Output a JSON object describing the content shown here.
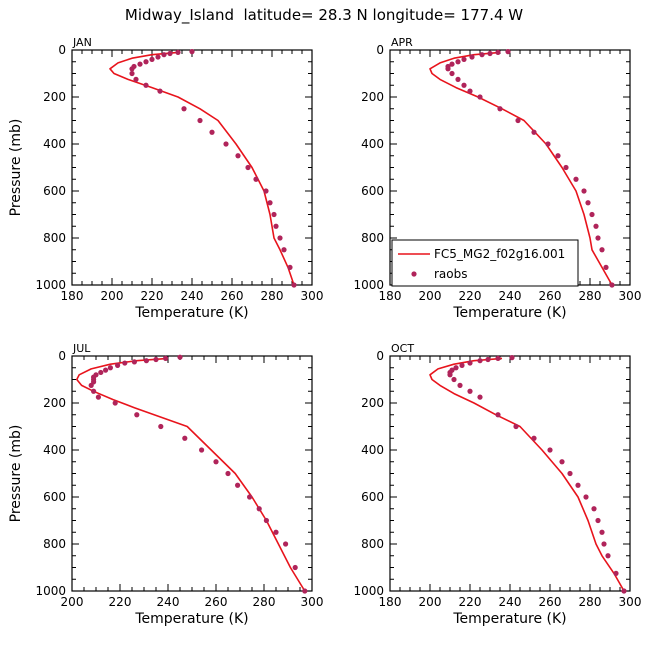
{
  "title": "Midway_Island  latitude= 28.3 N longitude= 177.4 W",
  "colors": {
    "model_line": "#e8141c",
    "raobs_dot": "#b0245a",
    "axis": "#000000"
  },
  "legend": {
    "model_label": "FC5_MG2_f02g16.001",
    "obs_label": "raobs",
    "placement": "inside APR panel, lower-left"
  },
  "chart_data": [
    {
      "type": "line",
      "panel": "JAN",
      "xlabel": "Temperature (K)",
      "ylabel": "Pressure (mb)",
      "xlim": [
        180,
        300
      ],
      "ylim": [
        1000,
        0
      ],
      "xticks": [
        180,
        200,
        220,
        240,
        260,
        280,
        300
      ],
      "yticks": [
        0,
        200,
        400,
        600,
        800,
        1000
      ],
      "series": [
        {
          "name": "FC5_MG2_f02g16.001",
          "style": "line",
          "x": [
            233,
            220,
            210,
            203,
            199,
            201,
            208,
            220,
            233,
            244,
            253,
            262,
            270,
            276,
            279,
            281,
            284,
            288,
            291
          ],
          "y": [
            10,
            20,
            35,
            55,
            80,
            100,
            125,
            160,
            200,
            250,
            300,
            400,
            500,
            600,
            700,
            800,
            850,
            925,
            1000
          ]
        },
        {
          "name": "raobs",
          "style": "points",
          "x": [
            240,
            233,
            229,
            226,
            223,
            220,
            217,
            214,
            211,
            210,
            210,
            212,
            217,
            224,
            236,
            244,
            250,
            257,
            263,
            268,
            272,
            277,
            279,
            281,
            282,
            284,
            286,
            289,
            291
          ],
          "y": [
            7,
            10,
            15,
            20,
            30,
            40,
            50,
            60,
            70,
            80,
            100,
            125,
            150,
            175,
            250,
            300,
            350,
            400,
            450,
            500,
            550,
            600,
            650,
            700,
            750,
            800,
            850,
            925,
            1000
          ]
        }
      ]
    },
    {
      "type": "line",
      "panel": "APR",
      "xlabel": "Temperature (K)",
      "ylabel": "",
      "xlim": [
        180,
        300
      ],
      "ylim": [
        1000,
        0
      ],
      "xticks": [
        180,
        200,
        220,
        240,
        260,
        280,
        300
      ],
      "yticks": [
        0,
        200,
        400,
        600,
        800,
        1000
      ],
      "series": [
        {
          "name": "FC5_MG2_f02g16.001",
          "style": "line",
          "x": [
            235,
            222,
            212,
            205,
            200,
            201,
            205,
            213,
            224,
            236,
            247,
            258,
            266,
            273,
            277,
            280,
            281,
            286,
            291
          ],
          "y": [
            10,
            20,
            35,
            55,
            80,
            100,
            125,
            160,
            200,
            250,
            300,
            400,
            500,
            600,
            700,
            800,
            850,
            925,
            1000
          ]
        },
        {
          "name": "raobs",
          "style": "points",
          "x": [
            239,
            234,
            230,
            226,
            221,
            217,
            214,
            211,
            209,
            209,
            211,
            214,
            217,
            220,
            225,
            235,
            244,
            252,
            259,
            264,
            268,
            273,
            277,
            279,
            281,
            283,
            284,
            286,
            288,
            291
          ],
          "y": [
            7,
            10,
            15,
            20,
            30,
            40,
            50,
            60,
            70,
            80,
            100,
            125,
            150,
            175,
            200,
            250,
            300,
            350,
            400,
            450,
            500,
            550,
            600,
            650,
            700,
            750,
            800,
            850,
            925,
            1000
          ]
        }
      ]
    },
    {
      "type": "line",
      "panel": "JUL",
      "xlabel": "Temperature (K)",
      "ylabel": "Pressure (mb)",
      "xlim": [
        200,
        300
      ],
      "ylim": [
        1000,
        0
      ],
      "xticks": [
        200,
        220,
        240,
        260,
        280,
        300
      ],
      "yticks": [
        0,
        200,
        400,
        600,
        800,
        1000
      ],
      "series": [
        {
          "name": "FC5_MG2_f02g16.001",
          "style": "line",
          "x": [
            240,
            227,
            216,
            208,
            203,
            202,
            204,
            209,
            217,
            226,
            237,
            248,
            258,
            268,
            275,
            281,
            286,
            291,
            297
          ],
          "y": [
            10,
            20,
            35,
            55,
            80,
            100,
            125,
            150,
            185,
            220,
            260,
            300,
            400,
            500,
            600,
            700,
            800,
            900,
            1000
          ]
        },
        {
          "name": "raobs",
          "style": "points",
          "x": [
            245,
            239,
            235,
            231,
            226,
            222,
            219,
            216,
            214,
            212,
            210,
            209,
            209,
            209,
            208,
            209,
            211,
            218,
            227,
            237,
            247,
            254,
            260,
            265,
            269,
            274,
            278,
            281,
            285,
            289,
            293,
            297
          ],
          "y": [
            5,
            10,
            15,
            20,
            25,
            30,
            40,
            50,
            60,
            70,
            80,
            90,
            100,
            110,
            125,
            150,
            175,
            200,
            250,
            300,
            350,
            400,
            450,
            500,
            550,
            600,
            650,
            700,
            750,
            800,
            900,
            1000
          ]
        }
      ]
    },
    {
      "type": "line",
      "panel": "OCT",
      "xlabel": "Temperature (K)",
      "ylabel": "",
      "xlim": [
        180,
        300
      ],
      "ylim": [
        1000,
        0
      ],
      "xticks": [
        180,
        200,
        220,
        240,
        260,
        280,
        300
      ],
      "yticks": [
        0,
        200,
        400,
        600,
        800,
        1000
      ],
      "series": [
        {
          "name": "FC5_MG2_f02g16.001",
          "style": "line",
          "x": [
            236,
            222,
            212,
            204,
            200,
            201,
            205,
            212,
            222,
            233,
            245,
            256,
            266,
            274,
            279,
            283,
            286,
            292,
            297
          ],
          "y": [
            10,
            20,
            35,
            55,
            80,
            100,
            125,
            160,
            200,
            250,
            300,
            400,
            500,
            600,
            700,
            800,
            850,
            925,
            1000
          ]
        },
        {
          "name": "raobs",
          "style": "points",
          "x": [
            241,
            234,
            229,
            225,
            220,
            216,
            213,
            211,
            210,
            210,
            212,
            215,
            220,
            225,
            234,
            243,
            252,
            260,
            266,
            270,
            274,
            278,
            282,
            284,
            286,
            287,
            289,
            293,
            297
          ],
          "y": [
            7,
            10,
            15,
            20,
            30,
            40,
            50,
            60,
            70,
            80,
            100,
            125,
            150,
            175,
            250,
            300,
            350,
            400,
            450,
            500,
            550,
            600,
            650,
            700,
            750,
            800,
            850,
            925,
            1000
          ]
        }
      ]
    }
  ]
}
